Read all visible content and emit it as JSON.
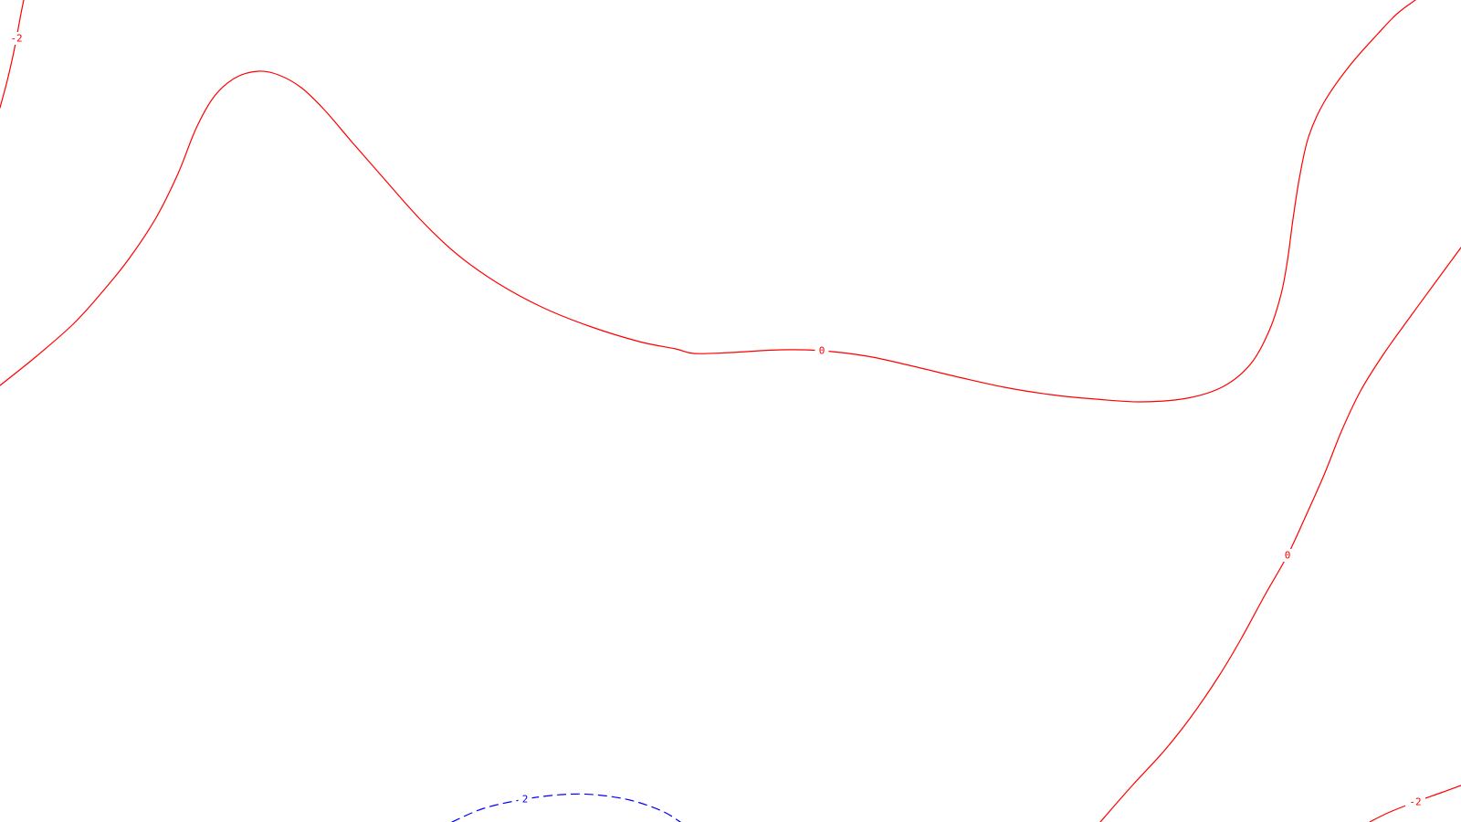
{
  "chart_data": {
    "type": "contour",
    "title": "",
    "xlabel": "",
    "ylabel": "",
    "grid": false,
    "legend": "none",
    "colors": {
      "negative": "#ff0000",
      "zero": "#ff0000",
      "positive": "#0000ff"
    },
    "contours": [
      {
        "id": "top-left-minus2",
        "level": -2,
        "label": "-2",
        "color": "#ff0000",
        "style": "solid",
        "points": [
          [
            26,
            0
          ],
          [
            22,
            20
          ],
          [
            18,
            42
          ],
          [
            14,
            62
          ],
          [
            8,
            88
          ],
          [
            0,
            118
          ]
        ],
        "label_index": 2
      },
      {
        "id": "main-zero",
        "level": 0,
        "label": "0",
        "color": "#ff0000",
        "style": "solid",
        "points": [
          [
            0,
            422
          ],
          [
            40,
            390
          ],
          [
            80,
            355
          ],
          [
            110,
            322
          ],
          [
            140,
            285
          ],
          [
            170,
            240
          ],
          [
            195,
            190
          ],
          [
            215,
            140
          ],
          [
            235,
            105
          ],
          [
            258,
            85
          ],
          [
            283,
            78
          ],
          [
            305,
            82
          ],
          [
            330,
            96
          ],
          [
            355,
            120
          ],
          [
            385,
            155
          ],
          [
            420,
            195
          ],
          [
            460,
            240
          ],
          [
            500,
            278
          ],
          [
            545,
            310
          ],
          [
            595,
            337
          ],
          [
            645,
            357
          ],
          [
            700,
            374
          ],
          [
            740,
            382
          ],
          [
            760,
            387
          ],
          [
            800,
            386
          ],
          [
            855,
            383
          ],
          [
            900,
            384
          ],
          [
            950,
            390
          ],
          [
            1000,
            401
          ],
          [
            1050,
            413
          ],
          [
            1100,
            424
          ],
          [
            1150,
            432
          ],
          [
            1200,
            437
          ],
          [
            1250,
            440
          ],
          [
            1300,
            436
          ],
          [
            1340,
            423
          ],
          [
            1370,
            398
          ],
          [
            1390,
            362
          ],
          [
            1403,
            322
          ],
          [
            1410,
            285
          ],
          [
            1416,
            240
          ],
          [
            1423,
            195
          ],
          [
            1433,
            150
          ],
          [
            1450,
            112
          ],
          [
            1478,
            72
          ],
          [
            1508,
            38
          ],
          [
            1530,
            15
          ],
          [
            1550,
            0
          ]
        ],
        "label_index": 26
      },
      {
        "id": "right-zero",
        "level": 0,
        "label": "0",
        "color": "#ff0000",
        "style": "solid",
        "points": [
          [
            1600,
            271
          ],
          [
            1575,
            305
          ],
          [
            1545,
            346
          ],
          [
            1515,
            388
          ],
          [
            1490,
            428
          ],
          [
            1470,
            470
          ],
          [
            1450,
            520
          ],
          [
            1430,
            565
          ],
          [
            1410,
            608
          ],
          [
            1385,
            652
          ],
          [
            1360,
            698
          ],
          [
            1335,
            740
          ],
          [
            1305,
            784
          ],
          [
            1275,
            822
          ],
          [
            1240,
            860
          ],
          [
            1205,
            900
          ]
        ],
        "label_index": 8
      },
      {
        "id": "bottom-right-minus2",
        "level": -2,
        "label": "-2",
        "color": "#ff0000",
        "style": "solid",
        "points": [
          [
            1600,
            860
          ],
          [
            1578,
            868
          ],
          [
            1550,
            878
          ],
          [
            1520,
            890
          ],
          [
            1500,
            900
          ]
        ],
        "label_index": 2
      },
      {
        "id": "bottom-two",
        "level": 2,
        "label": "2",
        "color": "#0000ff",
        "style": "dashed",
        "points": [
          [
            495,
            900
          ],
          [
            530,
            885
          ],
          [
            575,
            875
          ],
          [
            615,
            870
          ],
          [
            650,
            870
          ],
          [
            690,
            876
          ],
          [
            725,
            888
          ],
          [
            745,
            900
          ]
        ],
        "label_index": 2
      }
    ]
  }
}
